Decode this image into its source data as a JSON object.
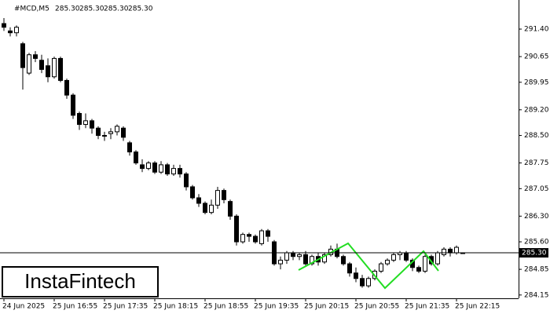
{
  "chart_data": {
    "type": "candlestick",
    "title": "#MCD,M5",
    "last_quote": {
      "values": [
        285.3,
        285.3,
        285.3,
        285.3
      ],
      "value_labels": [
        "285.30",
        "285.30",
        "285.30",
        "285.30"
      ]
    },
    "price_line": {
      "value": 285.3,
      "label": "285.30"
    },
    "watermark": "InstaFintech",
    "up_color": "#ffffff",
    "down_color": "#000000",
    "ylim": [
      284.06,
      292.15
    ],
    "yticks": [
      {
        "value": 291.4,
        "label": "291.40"
      },
      290.65,
      289.95,
      {
        "value": 289.2,
        "label": "289.20"
      },
      {
        "value": 288.5,
        "label": "288.50"
      },
      287.75,
      287.05,
      {
        "value": 286.3,
        "label": "286.30"
      },
      {
        "value": 285.6,
        "label": "285.60"
      },
      284.85,
      284.15
    ],
    "categories": [
      "24 Jun 2025",
      null,
      null,
      null,
      null,
      null,
      null,
      null,
      "25 Jun 16:55",
      null,
      null,
      null,
      null,
      null,
      null,
      null,
      "25 Jun 17:35",
      null,
      null,
      null,
      null,
      null,
      null,
      null,
      "25 Jun 18:15",
      null,
      null,
      null,
      null,
      null,
      null,
      null,
      "25 Jun 18:55",
      null,
      null,
      null,
      null,
      null,
      null,
      null,
      "25 Jun 19:35",
      null,
      null,
      null,
      null,
      null,
      null,
      null,
      "25 Jun 20:15",
      null,
      null,
      null,
      null,
      null,
      null,
      null,
      "25 Jun 20:55",
      null,
      null,
      null,
      null,
      null,
      null,
      null,
      "25 Jun 21:35",
      null,
      null,
      null,
      null,
      null,
      null,
      null,
      "25 Jun 22:15",
      null
    ],
    "open": [
      291.55,
      291.35,
      291.3,
      291.0,
      290.2,
      290.7,
      290.55,
      290.4,
      290.1,
      290.6,
      290.0,
      289.6,
      289.1,
      288.8,
      288.9,
      288.7,
      288.5,
      288.55,
      288.6,
      288.7,
      288.3,
      288.05,
      287.7,
      287.6,
      287.75,
      287.5,
      287.7,
      287.45,
      287.6,
      287.45,
      287.1,
      286.8,
      286.65,
      286.4,
      286.6,
      287.0,
      286.7,
      286.3,
      285.6,
      285.8,
      285.75,
      285.55,
      285.9,
      285.6,
      285.0,
      285.1,
      285.3,
      285.2,
      285.25,
      285.0,
      285.2,
      285.05,
      285.25,
      285.4,
      285.2,
      285.0,
      284.75,
      284.6,
      284.4,
      284.6,
      284.8,
      285.0,
      285.1,
      285.25,
      285.3,
      285.1,
      284.9,
      284.8,
      285.2,
      285.0,
      285.25,
      285.4,
      285.3,
      285.3
    ],
    "high": [
      291.7,
      291.45,
      291.5,
      291.05,
      290.75,
      290.8,
      290.7,
      290.6,
      290.65,
      290.65,
      290.05,
      289.65,
      289.15,
      289.1,
      288.95,
      288.75,
      288.6,
      288.7,
      288.8,
      288.75,
      288.35,
      288.1,
      287.85,
      287.8,
      287.8,
      287.8,
      287.75,
      287.7,
      287.7,
      287.5,
      287.15,
      286.9,
      286.7,
      286.75,
      287.1,
      287.05,
      286.75,
      286.35,
      285.85,
      285.85,
      285.8,
      285.95,
      285.95,
      285.65,
      285.2,
      285.35,
      285.35,
      285.3,
      285.35,
      285.25,
      285.3,
      285.3,
      285.5,
      285.55,
      285.25,
      285.05,
      284.9,
      284.7,
      284.65,
      284.85,
      285.05,
      285.15,
      285.3,
      285.35,
      285.35,
      285.15,
      284.95,
      285.25,
      285.25,
      285.35,
      285.45,
      285.45,
      285.5,
      285.3
    ],
    "low": [
      291.35,
      291.2,
      291.2,
      289.75,
      290.15,
      290.5,
      290.2,
      289.95,
      290.05,
      289.95,
      289.5,
      288.95,
      288.65,
      288.7,
      288.55,
      288.4,
      288.35,
      288.4,
      288.5,
      288.35,
      287.95,
      287.7,
      287.5,
      287.55,
      287.45,
      287.45,
      287.4,
      287.4,
      287.35,
      287.0,
      286.75,
      286.55,
      286.35,
      286.35,
      286.5,
      286.65,
      286.2,
      285.5,
      285.55,
      285.6,
      285.55,
      285.5,
      285.6,
      284.95,
      284.85,
      285.0,
      285.1,
      285.1,
      284.95,
      284.95,
      284.95,
      285.0,
      285.2,
      285.15,
      284.95,
      284.65,
      284.5,
      284.35,
      284.35,
      284.55,
      284.75,
      284.95,
      285.05,
      285.1,
      285.05,
      284.8,
      284.75,
      284.75,
      284.95,
      284.95,
      285.2,
      285.2,
      285.25,
      285.3
    ],
    "close": [
      291.45,
      291.3,
      291.45,
      290.35,
      290.7,
      290.6,
      290.3,
      290.1,
      290.6,
      290.0,
      289.6,
      289.05,
      288.8,
      288.9,
      288.7,
      288.5,
      288.5,
      288.6,
      288.75,
      288.45,
      288.05,
      287.75,
      287.6,
      287.75,
      287.5,
      287.7,
      287.45,
      287.6,
      287.45,
      287.1,
      286.8,
      286.65,
      286.4,
      286.6,
      287.0,
      286.75,
      286.3,
      285.6,
      285.8,
      285.75,
      285.6,
      285.9,
      285.75,
      285.0,
      285.1,
      285.3,
      285.2,
      285.25,
      285.0,
      285.2,
      285.05,
      285.25,
      285.4,
      285.2,
      285.0,
      284.75,
      284.6,
      284.4,
      284.6,
      284.8,
      285.0,
      285.1,
      285.25,
      285.3,
      285.1,
      284.9,
      284.8,
      285.2,
      285.0,
      285.3,
      285.4,
      285.3,
      285.45,
      285.3
    ]
  }
}
